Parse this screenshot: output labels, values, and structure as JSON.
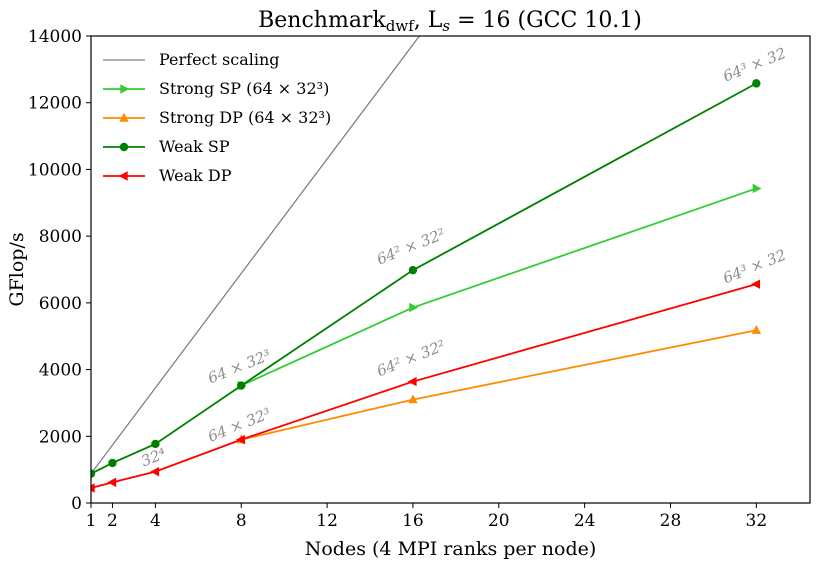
{
  "chart_data": {
    "type": "line",
    "title": "Benchmark_dwf, L_s = 16 (GCC 10.1)",
    "title_parts": {
      "prefix": "Benchmark",
      "subscript": "dwf",
      "middle": ", L",
      "var_subscript": "s",
      "suffix": " = 16 (GCC 10.1)"
    },
    "xlabel": "Nodes (4 MPI ranks per node)",
    "ylabel": "GFlop/s",
    "xlim": [
      1,
      34.5
    ],
    "ylim": [
      0,
      14000
    ],
    "xticks": [
      1,
      2,
      4,
      8,
      12,
      16,
      20,
      24,
      28,
      32
    ],
    "yticks": [
      0,
      2000,
      4000,
      6000,
      8000,
      10000,
      12000,
      14000
    ],
    "grid": false,
    "legend_position": "top-left",
    "series": [
      {
        "name": "Perfect scaling",
        "color": "#808080",
        "marker": "none",
        "x": [
          1,
          16.3
        ],
        "y": [
          880,
          14000
        ]
      },
      {
        "name": "Strong SP (64 × 32³)",
        "color": "#33cc33",
        "marker": "triangle-right",
        "x": [
          8,
          16,
          32
        ],
        "y": [
          3520,
          5860,
          9430
        ]
      },
      {
        "name": "Strong DP (64 × 32³)",
        "color": "#ff8c00",
        "marker": "triangle-up",
        "x": [
          8,
          16,
          32
        ],
        "y": [
          1900,
          3100,
          5180
        ]
      },
      {
        "name": "Weak SP",
        "color": "#008000",
        "marker": "circle",
        "x": [
          1,
          2,
          4,
          8,
          16,
          32
        ],
        "y": [
          880,
          1200,
          1770,
          3520,
          6980,
          12580
        ]
      },
      {
        "name": "Weak DP",
        "color": "#ff0000",
        "marker": "triangle-left",
        "x": [
          1,
          2,
          4,
          8,
          16,
          32
        ],
        "y": [
          450,
          620,
          940,
          1900,
          3640,
          6560
        ]
      }
    ],
    "annotations": [
      {
        "text": "32⁴",
        "x": 4,
        "y": 1230
      },
      {
        "text": "64 × 32³",
        "x": 8,
        "y": 3950
      },
      {
        "text": "64 × 32³",
        "x": 8,
        "y": 2200
      },
      {
        "text": "64² × 32²",
        "x": 16,
        "y": 7550
      },
      {
        "text": "64² × 32²",
        "x": 16,
        "y": 4200
      },
      {
        "text": "64³ × 32",
        "x": 32,
        "y": 13000
      },
      {
        "text": "64³ × 32",
        "x": 32,
        "y": 6950
      }
    ]
  }
}
